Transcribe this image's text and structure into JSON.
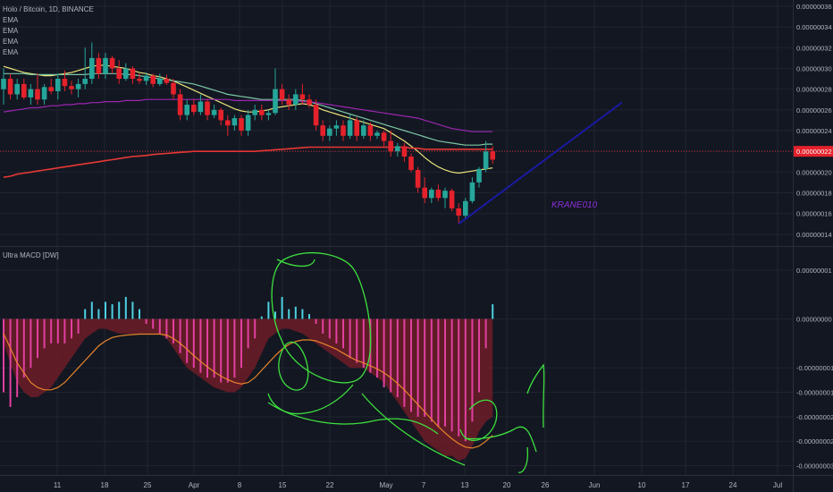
{
  "header": {
    "symbol": "Holo / Bitcoin, 1D, BINANCE",
    "indicators": [
      "EMA",
      "EMA",
      "EMA",
      "EMA"
    ]
  },
  "macd_label": "Ultra MACD [DW]",
  "annotation_text": "KRANE010",
  "colors": {
    "background": "#131722",
    "grid": "#1f2430",
    "bear_candle": "#e5222b",
    "bull_candle": "#26a69a",
    "ema_1": "#e9e27a",
    "ema_2": "#7bc8a4",
    "ema_3": "#9c27b0",
    "ema_4": "#e53935",
    "trendline": "#1a1aa0",
    "annotation": "#8c2fd6",
    "drawing": "#3ee03e",
    "hist_pos": "#4dd0e1",
    "hist_neg": "#e040a0",
    "macd_area": "#7a1e28",
    "signal": "#e8842a",
    "price_marker": "#e5222b"
  },
  "chart_data": [
    {
      "type": "candlestick",
      "title": "Holo / Bitcoin, 1D, BINANCE",
      "y_ticks": [
        "0.00000036",
        "0.00000034",
        "0.00000032",
        "0.00000030",
        "0.00000028",
        "0.00000026",
        "0.00000024",
        "0.00000022",
        "0.00000020",
        "0.00000018",
        "0.00000016",
        "0.00000014"
      ],
      "y_tick_values": [
        36,
        34,
        32,
        30,
        28,
        26,
        24,
        22,
        20,
        18,
        16,
        14
      ],
      "ylim": [
        13.3,
        36.6
      ],
      "y_unit": "1e-8 BTC",
      "current_price_label": "0.00000022",
      "current_price": 22,
      "x_ticks": [
        "11",
        "18",
        "25",
        "Apr",
        "8",
        "15",
        "22",
        "May",
        "7",
        "13",
        "20",
        "26",
        "Jun",
        "10",
        "17",
        "24",
        "Jul"
      ],
      "candles": [
        {
          "o": 28.0,
          "h": 30.0,
          "l": 26.5,
          "c": 29.0
        },
        {
          "o": 29.0,
          "h": 29.5,
          "l": 27.0,
          "c": 27.5
        },
        {
          "o": 27.5,
          "h": 29.0,
          "l": 27.0,
          "c": 28.5
        },
        {
          "o": 28.5,
          "h": 29.0,
          "l": 27.0,
          "c": 27.2
        },
        {
          "o": 27.2,
          "h": 28.5,
          "l": 26.5,
          "c": 28.0
        },
        {
          "o": 28.0,
          "h": 29.5,
          "l": 26.5,
          "c": 27.0
        },
        {
          "o": 27.0,
          "h": 28.5,
          "l": 26.5,
          "c": 28.2
        },
        {
          "o": 28.2,
          "h": 29.0,
          "l": 27.5,
          "c": 27.8
        },
        {
          "o": 27.8,
          "h": 29.5,
          "l": 27.0,
          "c": 29.0
        },
        {
          "o": 29.0,
          "h": 29.8,
          "l": 27.8,
          "c": 28.3
        },
        {
          "o": 28.3,
          "h": 28.8,
          "l": 27.5,
          "c": 28.0
        },
        {
          "o": 28.0,
          "h": 29.0,
          "l": 27.2,
          "c": 28.5
        },
        {
          "o": 28.5,
          "h": 32.0,
          "l": 28.0,
          "c": 29.0
        },
        {
          "o": 29.0,
          "h": 32.5,
          "l": 28.5,
          "c": 31.0
        },
        {
          "o": 31.0,
          "h": 31.5,
          "l": 29.0,
          "c": 29.5
        },
        {
          "o": 29.5,
          "h": 31.5,
          "l": 29.0,
          "c": 31.0
        },
        {
          "o": 31.0,
          "h": 31.2,
          "l": 29.5,
          "c": 30.0
        },
        {
          "o": 30.0,
          "h": 30.8,
          "l": 28.5,
          "c": 29.0
        },
        {
          "o": 29.0,
          "h": 30.5,
          "l": 28.8,
          "c": 30.0
        },
        {
          "o": 30.0,
          "h": 30.2,
          "l": 28.5,
          "c": 29.0
        },
        {
          "o": 29.0,
          "h": 29.5,
          "l": 28.5,
          "c": 28.8
        },
        {
          "o": 28.8,
          "h": 29.6,
          "l": 28.4,
          "c": 29.3
        },
        {
          "o": 29.3,
          "h": 29.5,
          "l": 28.2,
          "c": 28.5
        },
        {
          "o": 28.5,
          "h": 29.5,
          "l": 28.3,
          "c": 29.0
        },
        {
          "o": 29.0,
          "h": 29.4,
          "l": 28.4,
          "c": 28.6
        },
        {
          "o": 28.6,
          "h": 29.0,
          "l": 27.0,
          "c": 27.5
        },
        {
          "o": 27.5,
          "h": 28.0,
          "l": 25.0,
          "c": 25.5
        },
        {
          "o": 25.5,
          "h": 27.0,
          "l": 25.0,
          "c": 26.5
        },
        {
          "o": 26.5,
          "h": 27.0,
          "l": 25.5,
          "c": 25.8
        },
        {
          "o": 25.8,
          "h": 27.5,
          "l": 25.5,
          "c": 26.8
        },
        {
          "o": 26.8,
          "h": 27.0,
          "l": 25.0,
          "c": 25.5
        },
        {
          "o": 25.5,
          "h": 26.5,
          "l": 25.2,
          "c": 26.0
        },
        {
          "o": 26.0,
          "h": 26.2,
          "l": 24.5,
          "c": 25.0
        },
        {
          "o": 25.0,
          "h": 25.5,
          "l": 23.5,
          "c": 24.5
        },
        {
          "o": 24.5,
          "h": 25.5,
          "l": 24.0,
          "c": 25.2
        },
        {
          "o": 25.2,
          "h": 25.5,
          "l": 23.5,
          "c": 24.0
        },
        {
          "o": 24.0,
          "h": 26.0,
          "l": 23.5,
          "c": 25.5
        },
        {
          "o": 25.5,
          "h": 26.5,
          "l": 25.0,
          "c": 26.0
        },
        {
          "o": 26.0,
          "h": 26.5,
          "l": 25.0,
          "c": 25.5
        },
        {
          "o": 25.5,
          "h": 26.0,
          "l": 25.0,
          "c": 25.7
        },
        {
          "o": 25.7,
          "h": 30.0,
          "l": 25.5,
          "c": 28.0
        },
        {
          "o": 28.0,
          "h": 28.5,
          "l": 26.5,
          "c": 27.0
        },
        {
          "o": 27.0,
          "h": 27.5,
          "l": 26.0,
          "c": 26.5
        },
        {
          "o": 26.5,
          "h": 28.0,
          "l": 26.0,
          "c": 27.5
        },
        {
          "o": 27.5,
          "h": 28.5,
          "l": 26.5,
          "c": 27.0
        },
        {
          "o": 27.0,
          "h": 27.5,
          "l": 26.2,
          "c": 26.5
        },
        {
          "o": 26.5,
          "h": 27.0,
          "l": 24.0,
          "c": 24.5
        },
        {
          "o": 24.5,
          "h": 25.0,
          "l": 23.0,
          "c": 23.5
        },
        {
          "o": 23.5,
          "h": 24.5,
          "l": 23.0,
          "c": 24.2
        },
        {
          "o": 24.2,
          "h": 25.0,
          "l": 23.5,
          "c": 24.5
        },
        {
          "o": 24.5,
          "h": 25.0,
          "l": 23.0,
          "c": 23.5
        },
        {
          "o": 23.5,
          "h": 25.5,
          "l": 23.2,
          "c": 25.0
        },
        {
          "o": 25.0,
          "h": 25.3,
          "l": 23.0,
          "c": 23.5
        },
        {
          "o": 23.5,
          "h": 25.0,
          "l": 23.2,
          "c": 24.5
        },
        {
          "o": 24.5,
          "h": 24.8,
          "l": 23.0,
          "c": 23.5
        },
        {
          "o": 23.5,
          "h": 24.0,
          "l": 23.2,
          "c": 23.8
        },
        {
          "o": 23.8,
          "h": 24.0,
          "l": 22.5,
          "c": 23.0
        },
        {
          "o": 23.0,
          "h": 24.0,
          "l": 21.5,
          "c": 22.0
        },
        {
          "o": 22.0,
          "h": 22.8,
          "l": 21.5,
          "c": 22.5
        },
        {
          "o": 22.5,
          "h": 22.8,
          "l": 21.0,
          "c": 21.5
        },
        {
          "o": 21.5,
          "h": 21.8,
          "l": 20.0,
          "c": 20.2
        },
        {
          "o": 20.2,
          "h": 20.5,
          "l": 18.0,
          "c": 18.5
        },
        {
          "o": 18.5,
          "h": 19.5,
          "l": 17.0,
          "c": 17.5
        },
        {
          "o": 17.5,
          "h": 18.5,
          "l": 17.0,
          "c": 18.3
        },
        {
          "o": 18.3,
          "h": 18.8,
          "l": 17.2,
          "c": 17.5
        },
        {
          "o": 17.5,
          "h": 18.5,
          "l": 16.5,
          "c": 18.2
        },
        {
          "o": 18.2,
          "h": 18.4,
          "l": 16.2,
          "c": 16.5
        },
        {
          "o": 16.5,
          "h": 17.0,
          "l": 15.0,
          "c": 15.8
        },
        {
          "o": 15.8,
          "h": 17.5,
          "l": 15.5,
          "c": 17.2
        },
        {
          "o": 17.2,
          "h": 19.5,
          "l": 17.0,
          "c": 19.0
        },
        {
          "o": 19.0,
          "h": 20.5,
          "l": 18.5,
          "c": 20.3
        },
        {
          "o": 20.3,
          "h": 23.0,
          "l": 20.0,
          "c": 22.0
        },
        {
          "o": 22.0,
          "h": 22.5,
          "l": 20.8,
          "c": 21.2
        }
      ],
      "series": [
        {
          "name": "EMA",
          "color": "#e9e27a",
          "values": [
            30.2,
            30.0,
            29.8,
            29.6,
            29.5,
            29.4,
            29.3,
            29.3,
            29.4,
            29.5,
            29.6,
            29.8,
            30.0,
            30.2,
            30.3,
            30.3,
            30.2,
            30.1,
            30.0,
            29.8,
            29.6,
            29.5,
            29.3,
            29.2,
            29.0,
            28.8,
            28.5,
            28.2,
            27.9,
            27.6,
            27.3,
            27.0,
            26.7,
            26.4,
            26.1,
            25.9,
            25.8,
            25.8,
            25.9,
            26.0,
            26.2,
            26.3,
            26.4,
            26.5,
            26.6,
            26.5,
            26.3,
            26.0,
            25.8,
            25.6,
            25.4,
            25.2,
            25.0,
            24.8,
            24.6,
            24.4,
            24.2,
            23.8,
            23.4,
            23.0,
            22.5,
            22.0,
            21.4,
            20.9,
            20.5,
            20.2,
            20.0,
            19.9,
            20.0,
            20.1,
            20.2,
            20.3,
            20.4
          ]
        },
        {
          "name": "EMA",
          "color": "#7bc8a4",
          "values": [
            29.5,
            29.5,
            29.5,
            29.5,
            29.4,
            29.4,
            29.4,
            29.4,
            29.4,
            29.4,
            29.4,
            29.4,
            29.4,
            29.5,
            29.5,
            29.5,
            29.5,
            29.5,
            29.4,
            29.4,
            29.3,
            29.2,
            29.1,
            29.0,
            28.9,
            28.8,
            28.7,
            28.6,
            28.5,
            28.3,
            28.1,
            27.9,
            27.7,
            27.5,
            27.4,
            27.3,
            27.2,
            27.1,
            27.0,
            27.0,
            27.0,
            27.0,
            27.0,
            27.0,
            26.9,
            26.8,
            26.6,
            26.4,
            26.2,
            26.0,
            25.8,
            25.6,
            25.4,
            25.2,
            25.0,
            24.8,
            24.6,
            24.4,
            24.2,
            24.0,
            23.8,
            23.6,
            23.4,
            23.2,
            23.0,
            22.9,
            22.8,
            22.7,
            22.6,
            22.6,
            22.6,
            22.7,
            22.7
          ]
        },
        {
          "name": "EMA",
          "color": "#9c27b0",
          "values": [
            25.8,
            25.9,
            26.0,
            26.1,
            26.2,
            26.2,
            26.3,
            26.4,
            26.4,
            26.5,
            26.5,
            26.6,
            26.6,
            26.7,
            26.7,
            26.8,
            26.8,
            26.8,
            26.9,
            26.9,
            26.9,
            27.0,
            27.0,
            27.0,
            27.0,
            27.0,
            27.0,
            27.0,
            27.0,
            27.0,
            27.0,
            27.0,
            27.0,
            27.0,
            26.9,
            26.9,
            26.9,
            26.9,
            26.9,
            26.9,
            26.9,
            26.9,
            26.9,
            26.9,
            26.8,
            26.8,
            26.7,
            26.6,
            26.5,
            26.4,
            26.3,
            26.2,
            26.1,
            26.0,
            25.9,
            25.8,
            25.7,
            25.6,
            25.5,
            25.4,
            25.3,
            25.2,
            25.0,
            24.8,
            24.6,
            24.4,
            24.2,
            24.1,
            24.0,
            23.9,
            23.9,
            23.9,
            23.9
          ]
        },
        {
          "name": "EMA",
          "color": "#e53935",
          "values": [
            19.5,
            19.6,
            19.8,
            19.9,
            20.0,
            20.1,
            20.2,
            20.3,
            20.4,
            20.5,
            20.6,
            20.7,
            20.8,
            20.9,
            21.0,
            21.1,
            21.2,
            21.3,
            21.4,
            21.5,
            21.55,
            21.6,
            21.7,
            21.75,
            21.8,
            21.85,
            21.9,
            21.95,
            22.0,
            22.0,
            22.0,
            22.0,
            22.0,
            22.0,
            22.0,
            22.0,
            22.0,
            22.0,
            22.05,
            22.1,
            22.15,
            22.2,
            22.25,
            22.3,
            22.35,
            22.4,
            22.4,
            22.4,
            22.4,
            22.4,
            22.4,
            22.4,
            22.4,
            22.4,
            22.4,
            22.4,
            22.4,
            22.4,
            22.4,
            22.4,
            22.3,
            22.3,
            22.2,
            22.2,
            22.2,
            22.2,
            22.2,
            22.2,
            22.2,
            22.2,
            22.2,
            22.2,
            22.2
          ]
        }
      ],
      "trendline": {
        "from": [
          67,
          15.0
        ],
        "to": [
          91,
          26.7
        ]
      }
    },
    {
      "type": "bar+line",
      "title": "Ultra MACD [DW]",
      "y_ticks": [
        "0.00000001",
        "0.00000000",
        "-0.00000001",
        "-0.00000001",
        "-0.00000002",
        "-0.00000002",
        "-0.00000003"
      ],
      "y_tick_values": [
        1.0,
        0.0,
        -1.0,
        -1.5,
        -2.0,
        -2.5,
        -3.0
      ],
      "ylim": [
        -3.1,
        1.4
      ],
      "histogram": [
        -1.5,
        -1.8,
        -1.6,
        -1.2,
        -1.0,
        -0.8,
        -0.6,
        -0.5,
        -0.5,
        -0.5,
        -0.4,
        -0.3,
        0.2,
        0.35,
        0.2,
        0.35,
        0.3,
        0.35,
        0.45,
        0.35,
        0.2,
        -0.1,
        -0.2,
        -0.3,
        -0.4,
        -0.5,
        -0.7,
        -0.9,
        -1.0,
        -1.1,
        -1.2,
        -1.2,
        -1.3,
        -1.3,
        -1.2,
        -1.0,
        -0.6,
        -0.4,
        0.05,
        0.35,
        0.15,
        0.45,
        0.2,
        0.25,
        0.2,
        0.1,
        -0.1,
        -0.3,
        -0.4,
        -0.5,
        -0.6,
        -0.8,
        -0.9,
        -1.0,
        -1.1,
        -1.2,
        -1.4,
        -1.5,
        -1.6,
        -1.8,
        -1.9,
        -2.0,
        -2.0,
        -2.1,
        -2.2,
        -2.2,
        -2.3,
        -2.4,
        -2.5,
        -2.1,
        -1.5,
        -0.6,
        0.3
      ],
      "macd": [
        -0.5,
        -0.9,
        -1.3,
        -1.5,
        -1.6,
        -1.6,
        -1.5,
        -1.4,
        -1.2,
        -1.0,
        -0.8,
        -0.6,
        -0.4,
        -0.3,
        -0.2,
        -0.2,
        -0.25,
        -0.3,
        -0.3,
        -0.3,
        -0.3,
        -0.3,
        -0.3,
        -0.3,
        -0.4,
        -0.6,
        -0.8,
        -1.0,
        -1.1,
        -1.2,
        -1.3,
        -1.4,
        -1.45,
        -1.5,
        -1.5,
        -1.4,
        -1.2,
        -1.0,
        -0.7,
        -0.4,
        -0.3,
        -0.2,
        -0.2,
        -0.25,
        -0.3,
        -0.4,
        -0.5,
        -0.6,
        -0.7,
        -0.8,
        -0.9,
        -1.0,
        -1.0,
        -1.0,
        -1.1,
        -1.2,
        -1.3,
        -1.5,
        -1.7,
        -1.9,
        -2.1,
        -2.3,
        -2.5,
        -2.6,
        -2.7,
        -2.8,
        -2.8,
        -2.9,
        -2.85,
        -2.6,
        -2.3,
        -2.1,
        -2.0
      ],
      "signal": [
        -0.3,
        -0.6,
        -0.9,
        -1.1,
        -1.3,
        -1.4,
        -1.45,
        -1.45,
        -1.4,
        -1.3,
        -1.15,
        -1.0,
        -0.85,
        -0.7,
        -0.55,
        -0.45,
        -0.38,
        -0.35,
        -0.33,
        -0.32,
        -0.31,
        -0.31,
        -0.31,
        -0.31,
        -0.33,
        -0.4,
        -0.5,
        -0.62,
        -0.75,
        -0.87,
        -0.98,
        -1.08,
        -1.17,
        -1.24,
        -1.3,
        -1.33,
        -1.3,
        -1.2,
        -1.05,
        -0.9,
        -0.75,
        -0.62,
        -0.52,
        -0.46,
        -0.43,
        -0.43,
        -0.45,
        -0.5,
        -0.56,
        -0.62,
        -0.7,
        -0.78,
        -0.85,
        -0.9,
        -0.96,
        -1.02,
        -1.1,
        -1.2,
        -1.32,
        -1.45,
        -1.6,
        -1.75,
        -1.9,
        -2.05,
        -2.2,
        -2.33,
        -2.45,
        -2.55,
        -2.62,
        -2.64,
        -2.6,
        -2.5,
        -2.38
      ]
    }
  ]
}
